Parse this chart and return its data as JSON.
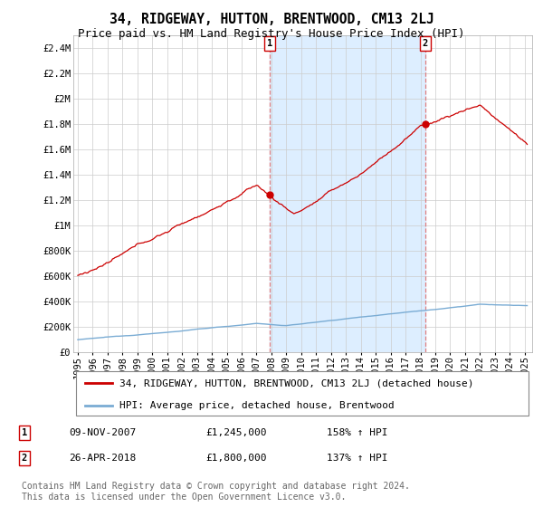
{
  "title": "34, RIDGEWAY, HUTTON, BRENTWOOD, CM13 2LJ",
  "subtitle": "Price paid vs. HM Land Registry's House Price Index (HPI)",
  "ylabel_ticks": [
    "£0",
    "£200K",
    "£400K",
    "£600K",
    "£800K",
    "£1M",
    "£1.2M",
    "£1.4M",
    "£1.6M",
    "£1.8M",
    "£2M",
    "£2.2M",
    "£2.4M"
  ],
  "ytick_values": [
    0,
    200000,
    400000,
    600000,
    800000,
    1000000,
    1200000,
    1400000,
    1600000,
    1800000,
    2000000,
    2200000,
    2400000
  ],
  "ylim": [
    0,
    2500000
  ],
  "xlim_start": 1994.7,
  "xlim_end": 2025.5,
  "legend_line1": "34, RIDGEWAY, HUTTON, BRENTWOOD, CM13 2LJ (detached house)",
  "legend_line2": "HPI: Average price, detached house, Brentwood",
  "marker1_date": "09-NOV-2007",
  "marker1_price": "£1,245,000",
  "marker1_hpi": "158% ↑ HPI",
  "marker1_x": 2007.86,
  "marker1_y": 1245000,
  "marker2_date": "26-APR-2018",
  "marker2_price": "£1,800,000",
  "marker2_hpi": "137% ↑ HPI",
  "marker2_x": 2018.32,
  "marker2_y": 1800000,
  "vline1_x": 2007.86,
  "vline2_x": 2018.32,
  "line_color_red": "#cc0000",
  "line_color_blue": "#7aacd4",
  "vline_color": "#e08080",
  "shade_color": "#ddeeff",
  "footer_text": "Contains HM Land Registry data © Crown copyright and database right 2024.\nThis data is licensed under the Open Government Licence v3.0.",
  "background_color": "#ffffff",
  "grid_color": "#cccccc",
  "title_fontsize": 10.5,
  "subtitle_fontsize": 9,
  "tick_fontsize": 7.5,
  "legend_fontsize": 8,
  "footer_fontsize": 7,
  "xticks": [
    1995,
    1996,
    1997,
    1998,
    1999,
    2000,
    2001,
    2002,
    2003,
    2004,
    2005,
    2006,
    2007,
    2008,
    2009,
    2010,
    2011,
    2012,
    2013,
    2014,
    2015,
    2016,
    2017,
    2018,
    2019,
    2020,
    2021,
    2022,
    2023,
    2024,
    2025
  ]
}
